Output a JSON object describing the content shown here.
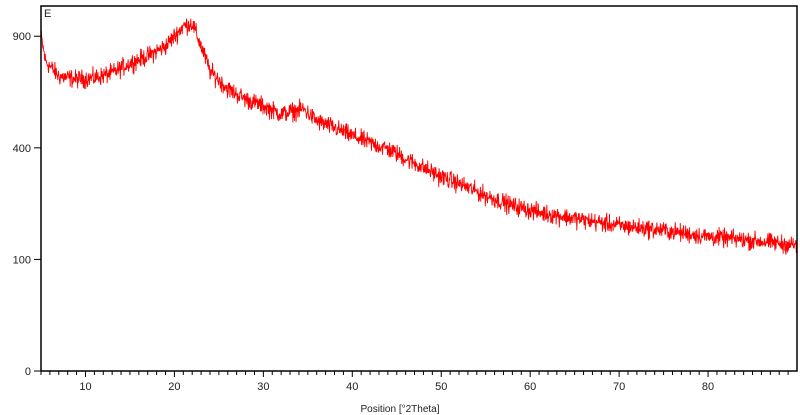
{
  "chart_data": {
    "type": "line",
    "panel_label": "E",
    "xlabel": "Position [°2Theta]",
    "ylabel": "",
    "xlim": [
      5,
      90
    ],
    "ylim": [
      0,
      1070
    ],
    "y_scale": "sqrt",
    "x_ticks": [
      10,
      20,
      30,
      40,
      50,
      60,
      70,
      80
    ],
    "y_ticks": [
      0,
      100,
      400,
      900
    ],
    "grid": false,
    "series": [
      {
        "color": "#ff0000",
        "x": [
          5,
          5.5,
          7,
          9,
          11,
          13,
          15,
          17,
          19,
          21,
          22,
          23,
          24,
          26,
          28,
          30,
          32,
          34.5,
          36,
          38,
          40,
          42,
          44,
          46,
          48,
          50,
          52,
          55,
          58,
          61,
          65,
          70,
          75,
          80,
          85,
          90
        ],
        "y": [
          900,
          771,
          698,
          684,
          690,
          713,
          761,
          796,
          847,
          955,
          971,
          847,
          722,
          639,
          594,
          564,
          530,
          551,
          502,
          475,
          444,
          418,
          396,
          362,
          332,
          303,
          282,
          247,
          220,
          202,
          187,
          170,
          159,
          145,
          137,
          127
        ]
      }
    ]
  }
}
